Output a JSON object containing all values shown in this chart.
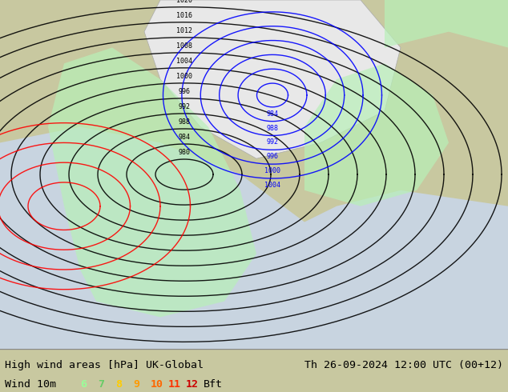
{
  "title_left": "High wind areas [hPa] UK-Global",
  "title_right": "Th 26-09-2024 12:00 UTC (00+12)",
  "subtitle_left": "Wind 10m",
  "legend_numbers": [
    "6",
    "7",
    "8",
    "9",
    "10",
    "11",
    "12"
  ],
  "legend_colors": [
    "#99ff99",
    "#66cc66",
    "#ffcc00",
    "#ff9900",
    "#ff6600",
    "#ff3300",
    "#cc0000"
  ],
  "legend_suffix": "Bft",
  "bg_color": "#c8c8a0",
  "sea_color": "#d0d8e8",
  "map_border_color": "#888888",
  "bottom_bar_color": "#d8d8d8",
  "text_color": "#000000",
  "font_family": "monospace",
  "figsize": [
    6.34,
    4.9
  ],
  "dpi": 100
}
